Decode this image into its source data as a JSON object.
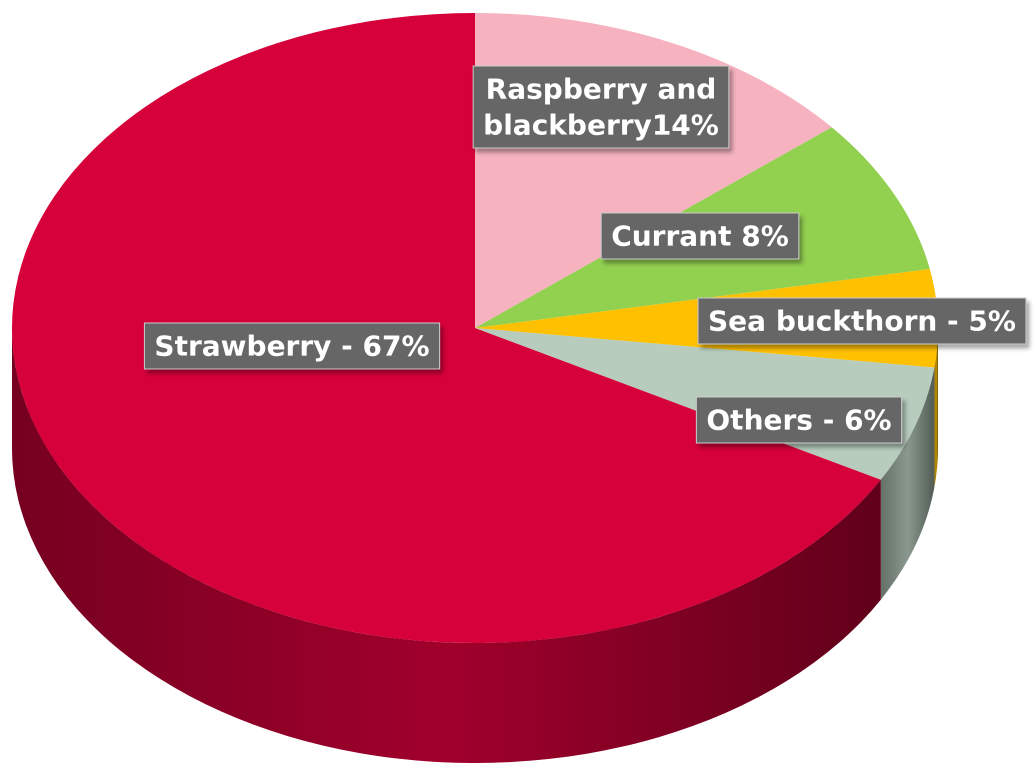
{
  "chart_data": {
    "type": "pie",
    "title": "",
    "slices": [
      {
        "label": "Raspberry and blackberry",
        "label_lines": [
          "Raspberry and",
          "blackberry14%"
        ],
        "value": 14,
        "color": "#F7B2C0"
      },
      {
        "label": "Currant",
        "label_lines": [
          "Currant 8%"
        ],
        "value": 8,
        "color": "#92D050"
      },
      {
        "label": "Sea buckthorn",
        "label_lines": [
          "Sea buckthorn - 5%"
        ],
        "value": 5,
        "color": "#FFC000"
      },
      {
        "label": "Others",
        "label_lines": [
          "Others - 6%"
        ],
        "value": 6,
        "color": "#B7CCBD"
      },
      {
        "label": "Strawberry",
        "label_lines": [
          "Strawberry - 67%"
        ],
        "value": 67,
        "color": "#D6003A"
      }
    ],
    "start_angle": "12 o'clock",
    "direction": "clockwise",
    "style": "3d-tilted",
    "legend": "none",
    "data_labels": "on-slice"
  }
}
